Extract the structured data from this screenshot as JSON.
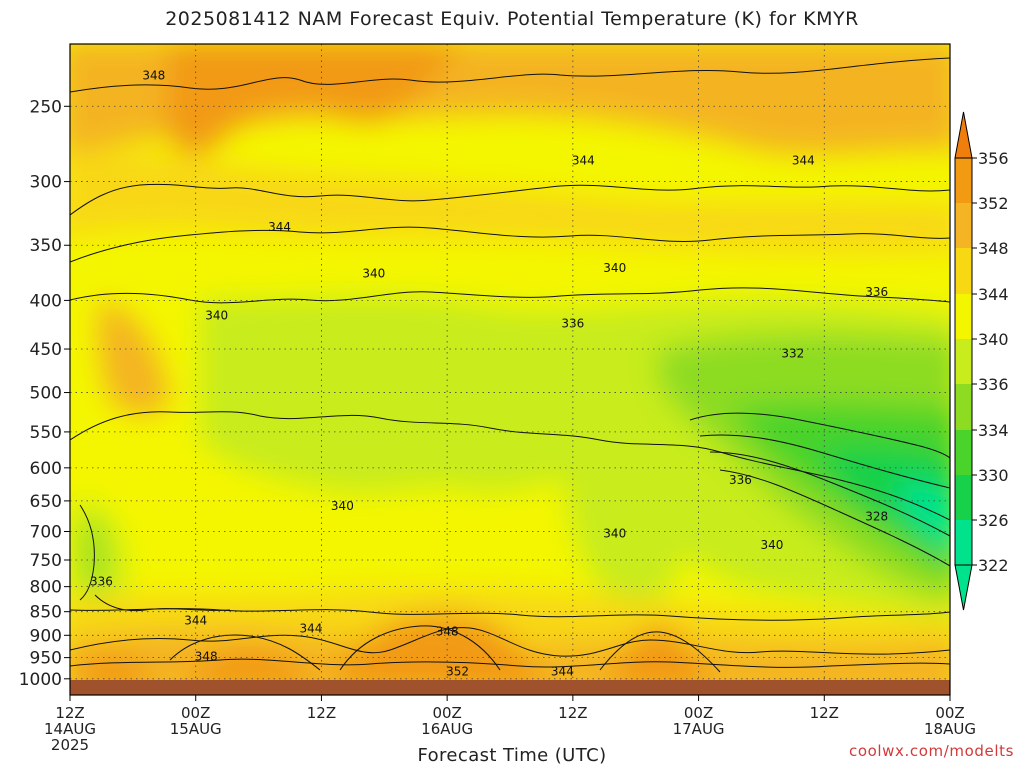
{
  "title": "2025081412 NAM Forecast Equiv. Potential Temperature (K) for KMYR",
  "credit": "coolwx.com/modelts",
  "chart_data": {
    "type": "heatmap",
    "title": "2025081412 NAM Forecast Equiv. Potential Temperature (K) for KMYR",
    "xlabel": "Forecast Time (UTC)",
    "ylabel": "",
    "y_scale": "log",
    "x_range_hours": [
      0,
      84
    ],
    "y_range_hpa": [
      1040,
      215
    ],
    "y_ticks": [
      250,
      300,
      350,
      400,
      450,
      500,
      550,
      600,
      650,
      700,
      750,
      800,
      850,
      900,
      950,
      1000
    ],
    "x_ticks": [
      {
        "hour": 0,
        "line1": "12Z",
        "line2": "14AUG",
        "line3": "2025"
      },
      {
        "hour": 12,
        "line1": "00Z",
        "line2": "15AUG",
        "line3": ""
      },
      {
        "hour": 24,
        "line1": "12Z",
        "line2": "",
        "line3": ""
      },
      {
        "hour": 36,
        "line1": "00Z",
        "line2": "16AUG",
        "line3": ""
      },
      {
        "hour": 48,
        "line1": "12Z",
        "line2": "",
        "line3": ""
      },
      {
        "hour": 60,
        "line1": "00Z",
        "line2": "17AUG",
        "line3": ""
      },
      {
        "hour": 72,
        "line1": "12Z",
        "line2": "",
        "line3": ""
      },
      {
        "hour": 84,
        "line1": "00Z",
        "line2": "18AUG",
        "line3": ""
      }
    ],
    "grid": true,
    "colorbar": {
      "position": "right",
      "levels": [
        322,
        326,
        330,
        334,
        336,
        340,
        344,
        348,
        352,
        356
      ],
      "colors": [
        "#00e38c",
        "#18d14a",
        "#4ad32a",
        "#8ddc22",
        "#c8ec1c",
        "#f4f600",
        "#f8d812",
        "#f4b424",
        "#f29a12",
        "#f07e0c"
      ]
    },
    "surface_color": "#a0522d",
    "contour_labels": [
      {
        "value": "348",
        "hour": 8,
        "p": 232
      },
      {
        "value": "344",
        "hour": 20,
        "p": 335
      },
      {
        "value": "344",
        "hour": 49,
        "p": 285
      },
      {
        "value": "344",
        "hour": 70,
        "p": 285
      },
      {
        "value": "340",
        "hour": 14,
        "p": 415
      },
      {
        "value": "340",
        "hour": 29,
        "p": 375
      },
      {
        "value": "340",
        "hour": 52,
        "p": 370
      },
      {
        "value": "336",
        "hour": 77,
        "p": 392
      },
      {
        "value": "336",
        "hour": 48,
        "p": 423
      },
      {
        "value": "332",
        "hour": 69,
        "p": 455
      },
      {
        "value": "336",
        "hour": 64,
        "p": 618
      },
      {
        "value": "328",
        "hour": 77,
        "p": 675
      },
      {
        "value": "340",
        "hour": 26,
        "p": 658
      },
      {
        "value": "340",
        "hour": 52,
        "p": 703
      },
      {
        "value": "340",
        "hour": 67,
        "p": 723
      },
      {
        "value": "336",
        "hour": 3,
        "p": 790
      },
      {
        "value": "344",
        "hour": 12,
        "p": 868
      },
      {
        "value": "344",
        "hour": 23,
        "p": 885
      },
      {
        "value": "348",
        "hour": 36,
        "p": 892
      },
      {
        "value": "348",
        "hour": 13,
        "p": 947
      },
      {
        "value": "352",
        "hour": 37,
        "p": 982
      },
      {
        "value": "344",
        "hour": 47,
        "p": 982
      }
    ],
    "contour_values": [
      322,
      326,
      328,
      330,
      332,
      334,
      336,
      340,
      344,
      348,
      352,
      356
    ]
  }
}
